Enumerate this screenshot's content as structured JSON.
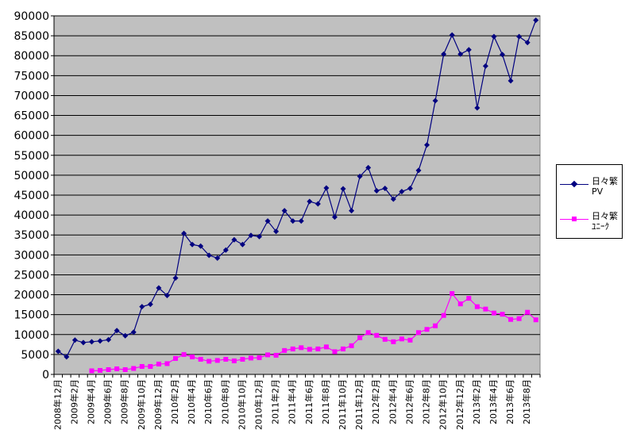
{
  "chart_data": {
    "type": "line",
    "ylim": [
      0,
      90000
    ],
    "yticks": [
      0,
      5000,
      10000,
      15000,
      20000,
      25000,
      30000,
      35000,
      40000,
      45000,
      50000,
      55000,
      60000,
      65000,
      70000,
      75000,
      80000,
      85000,
      90000
    ],
    "plot_bg": "#c0c0c0",
    "grid": true,
    "legend_position": "right",
    "x": [
      "2008年12月",
      "2009年1月",
      "2009年2月",
      "2009年3月",
      "2009年4月",
      "2009年5月",
      "2009年6月",
      "2009年7月",
      "2009年8月",
      "2009年9月",
      "2009年10月",
      "2009年11月",
      "2009年12月",
      "2010年1月",
      "2010年2月",
      "2010年3月",
      "2010年4月",
      "2010年5月",
      "2010年6月",
      "2010年7月",
      "2010年8月",
      "2010年9月",
      "2010年10月",
      "2010年11月",
      "2010年12月",
      "2011年1月",
      "2011年2月",
      "2011年3月",
      "2011年4月",
      "2011年5月",
      "2011年6月",
      "2011年7月",
      "2011年8月",
      "2011年9月",
      "2011年10月",
      "2011年11月",
      "2011年12月",
      "2012年1月",
      "2012年2月",
      "2012年3月",
      "2012年4月",
      "2012年5月",
      "2012年6月",
      "2012年7月",
      "2012年8月",
      "2012年9月",
      "2012年10月",
      "2012年11月",
      "2012年12月",
      "2013年1月",
      "2013年2月",
      "2013年3月",
      "2013年4月",
      "2013年5月",
      "2013年6月",
      "2013年7月",
      "2013年8月",
      "2013年9月"
    ],
    "xtick_labels": [
      "2008年12月",
      "",
      "2009年2月",
      "",
      "2009年4月",
      "",
      "2009年6月",
      "",
      "2009年8月",
      "",
      "2009年10月",
      "",
      "2009年12月",
      "",
      "2010年2月",
      "",
      "2010年4月",
      "",
      "2010年6月",
      "",
      "2010年8月",
      "",
      "2010年10月",
      "",
      "2010年12月",
      "",
      "2011年2月",
      "",
      "2011年4月",
      "",
      "2011年6月",
      "",
      "2011年8月",
      "",
      "2011年10月",
      "",
      "2011年12月",
      "",
      "2012年2月",
      "",
      "2012年4月",
      "",
      "2012年6月",
      "",
      "2012年8月",
      "",
      "2012年10月",
      "",
      "2012年12月",
      "",
      "2013年2月",
      "",
      "2013年4月",
      "",
      "2013年6月",
      "",
      "2013年8月",
      ""
    ],
    "series": [
      {
        "name": "日々繁\nPV",
        "color": "#000080",
        "marker": "diamond",
        "values": [
          5800,
          4400,
          8600,
          8000,
          8200,
          8400,
          8700,
          11000,
          9700,
          10600,
          17000,
          17600,
          21700,
          19800,
          24200,
          35400,
          32600,
          32200,
          29900,
          29200,
          31200,
          33800,
          32600,
          34900,
          34600,
          38500,
          35900,
          41100,
          38500,
          38500,
          43400,
          42800,
          46800,
          39500,
          46600,
          41100,
          49700,
          51900,
          46100,
          46700,
          44000,
          45900,
          46700,
          51200,
          57600,
          68700,
          80400,
          85200,
          80400,
          81500,
          66900,
          77400,
          84800,
          80300,
          73700,
          84800,
          83300,
          88900
        ]
      },
      {
        "name": "日々繁\nﾕﾆｰｸ",
        "color": "#ff00ff",
        "marker": "square",
        "values": [
          null,
          null,
          null,
          null,
          900,
          1000,
          1200,
          1400,
          1200,
          1500,
          2000,
          2000,
          2600,
          2700,
          4000,
          5000,
          4400,
          3800,
          3300,
          3500,
          3800,
          3400,
          3800,
          4100,
          4200,
          4900,
          4800,
          6000,
          6400,
          6700,
          6300,
          6400,
          6900,
          5700,
          6400,
          7200,
          9200,
          10500,
          9800,
          8800,
          8200,
          8900,
          8600,
          10500,
          11300,
          12200,
          14800,
          20300,
          17700,
          19100,
          17000,
          16400,
          15400,
          15100,
          13800,
          14000,
          15600,
          13700
        ]
      }
    ]
  }
}
